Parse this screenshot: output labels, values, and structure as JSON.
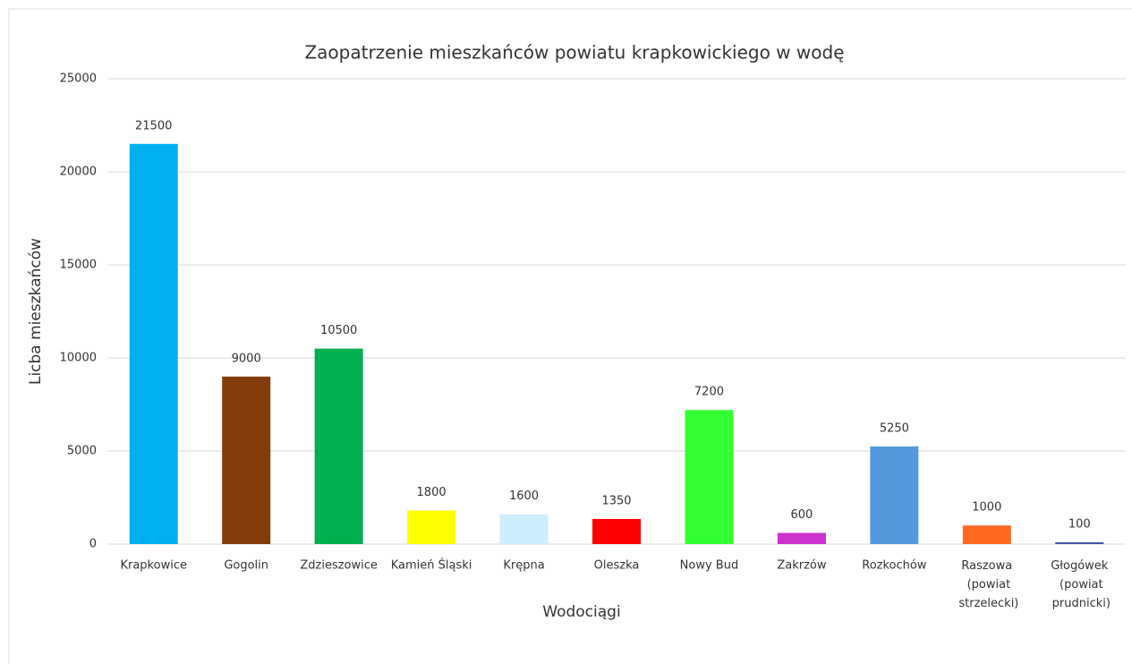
{
  "chart_data": {
    "type": "bar",
    "title": "Zaopatrzenie mieszkańców powiatu krapkowickiego w wodę",
    "x_label": "Wodociągi",
    "y_label": "Licba mieszkańców",
    "categories": [
      "Krapkowice",
      "Gogolin",
      "Zdzieszowice",
      "Kamień Śląski",
      "Krępna",
      "Oleszka",
      "Nowy Bud",
      "Zakrzów",
      "Rozkochów",
      "Raszowa (powiat strzelecki)",
      "Głogówek (powiat prudnicki)"
    ],
    "values": [
      21500,
      9000,
      10500,
      1800,
      1600,
      1350,
      7200,
      600,
      5250,
      1000,
      100
    ],
    "colors": [
      "#00b0f0",
      "#843c0c",
      "#00b050",
      "#ffff00",
      "#cdeefc",
      "#ff0000",
      "#33ff33",
      "#cc33cc",
      "#5599dd",
      "#ff6a22",
      "#4455aa"
    ],
    "ylim": [
      0,
      25000
    ],
    "yticks": [
      0,
      5000,
      10000,
      15000,
      20000,
      25000
    ],
    "grid": true
  }
}
